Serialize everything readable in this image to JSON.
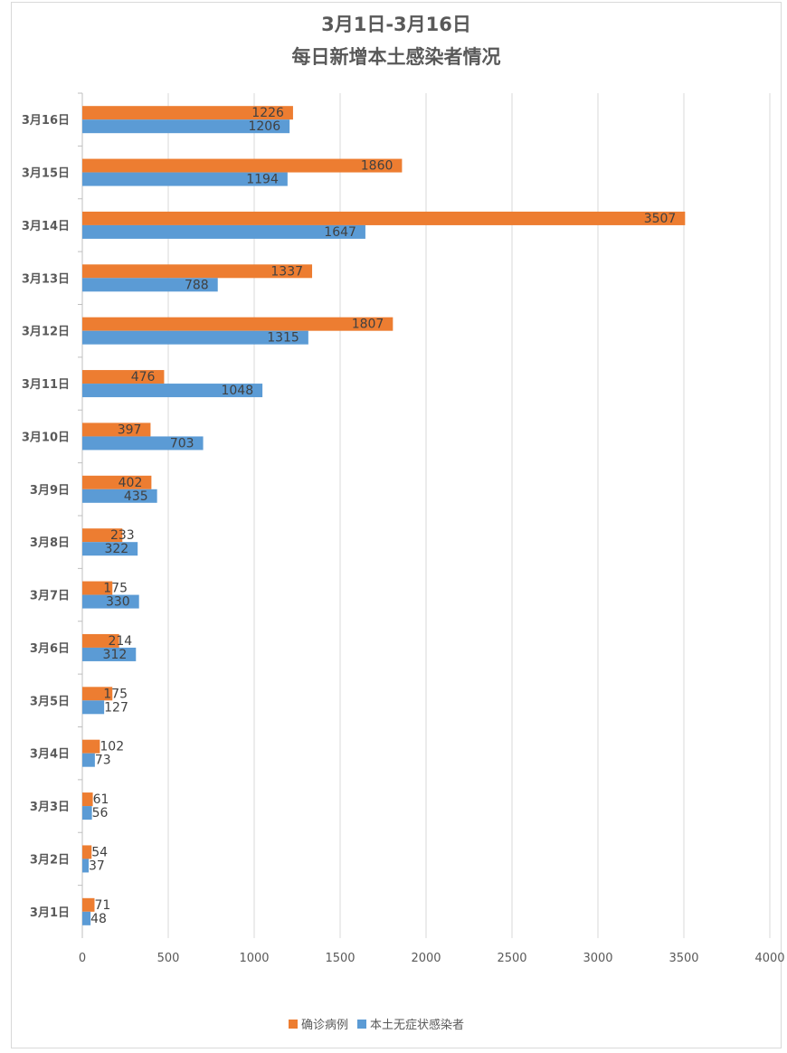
{
  "chart_data": {
    "type": "bar",
    "orientation": "horizontal",
    "title": [
      "3月1日-3月16日",
      "每日新增本土感染者情况"
    ],
    "categories": [
      "3月16日",
      "3月15日",
      "3月14日",
      "3月13日",
      "3月12日",
      "3月11日",
      "3月10日",
      "3月9日",
      "3月8日",
      "3月7日",
      "3月6日",
      "3月5日",
      "3月4日",
      "3月3日",
      "3月2日",
      "3月1日"
    ],
    "series": [
      {
        "name": "确诊病例",
        "color": "#ed7d31",
        "values": [
          1226,
          1860,
          3507,
          1337,
          1807,
          476,
          397,
          402,
          233,
          175,
          214,
          175,
          102,
          61,
          54,
          71
        ]
      },
      {
        "name": "本土无症状感染者",
        "color": "#5b9bd5",
        "values": [
          1206,
          1194,
          1647,
          788,
          1315,
          1048,
          703,
          435,
          322,
          330,
          312,
          127,
          73,
          56,
          37,
          48
        ]
      }
    ],
    "xlim": [
      0,
      4000
    ],
    "xticks": [
      "0",
      "500",
      "1000",
      "1500",
      "2000",
      "2500",
      "3000",
      "3500",
      "4000"
    ],
    "grid": true,
    "legend": "bottom",
    "data_labels": true
  }
}
